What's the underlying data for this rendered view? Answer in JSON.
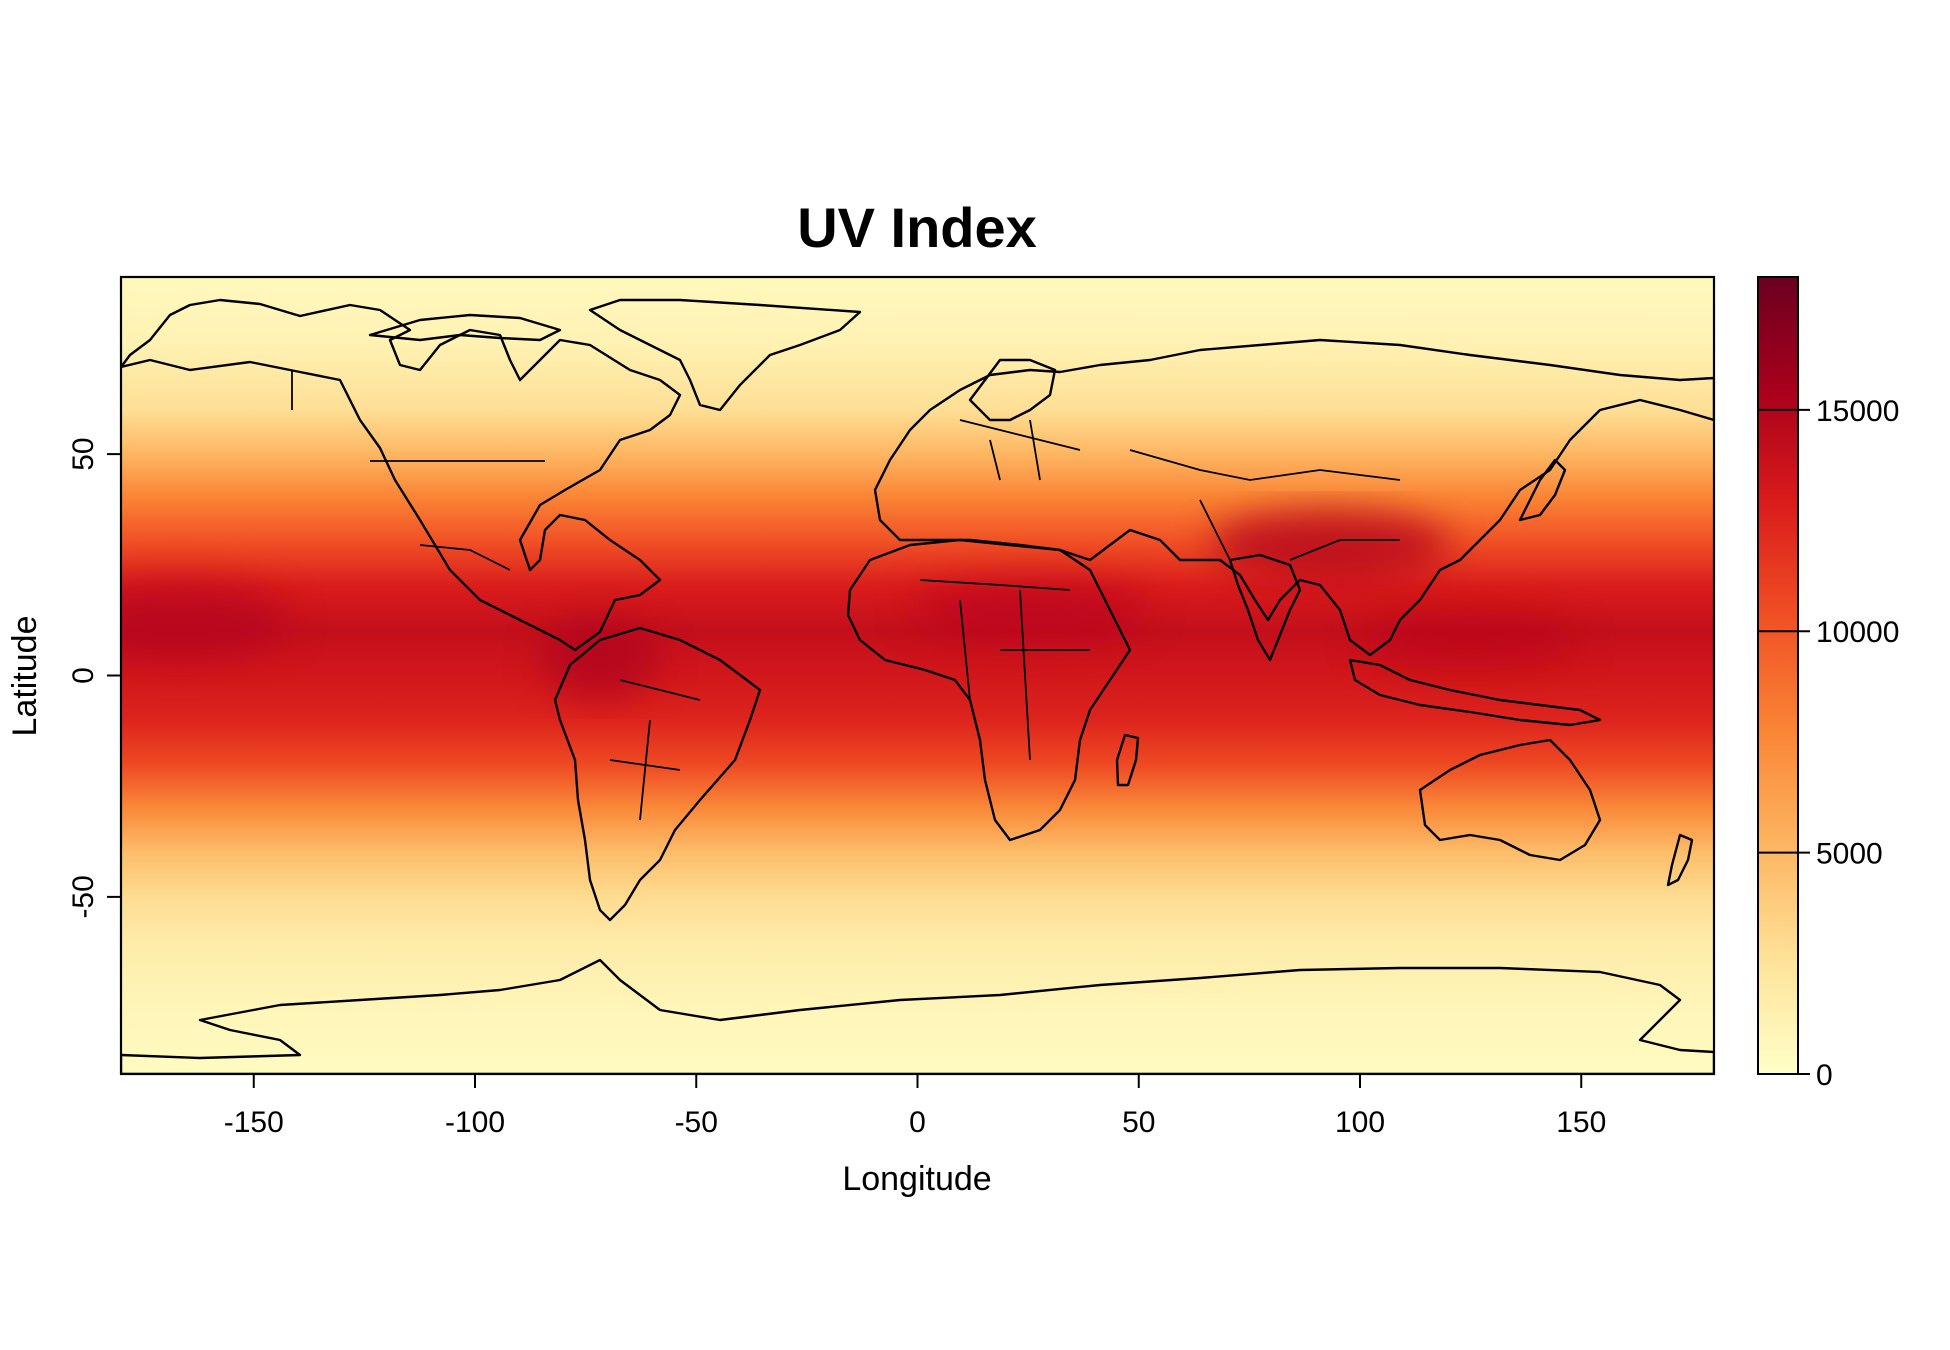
{
  "chart_data": {
    "type": "heatmap",
    "title": "UV Index",
    "xlabel": "Longitude",
    "ylabel": "Latitude",
    "xlim": [
      -180,
      180
    ],
    "ylim": [
      -90,
      90
    ],
    "x_ticks": [
      -150,
      -100,
      -50,
      0,
      50,
      100,
      150
    ],
    "y_ticks": [
      -50,
      0,
      50
    ],
    "colorbar": {
      "min": 0,
      "max": 18000,
      "ticks": [
        0,
        5000,
        10000,
        15000
      ],
      "colors": [
        "#ffffc8",
        "#fee39a",
        "#fdb763",
        "#fa8535",
        "#f04d24",
        "#d91b1c",
        "#a8001c",
        "#6b0021"
      ]
    },
    "zonal_profile": {
      "latitude": [
        90,
        75,
        60,
        50,
        40,
        30,
        20,
        10,
        0,
        -10,
        -20,
        -30,
        -40,
        -50,
        -60,
        -75,
        -90
      ],
      "value": [
        600,
        1200,
        2800,
        5200,
        7800,
        10200,
        12800,
        14000,
        13200,
        12400,
        10500,
        7500,
        4800,
        3000,
        1800,
        900,
        400
      ]
    }
  },
  "map": {
    "grid": "on",
    "features": [
      "country borders",
      "coastlines"
    ]
  }
}
